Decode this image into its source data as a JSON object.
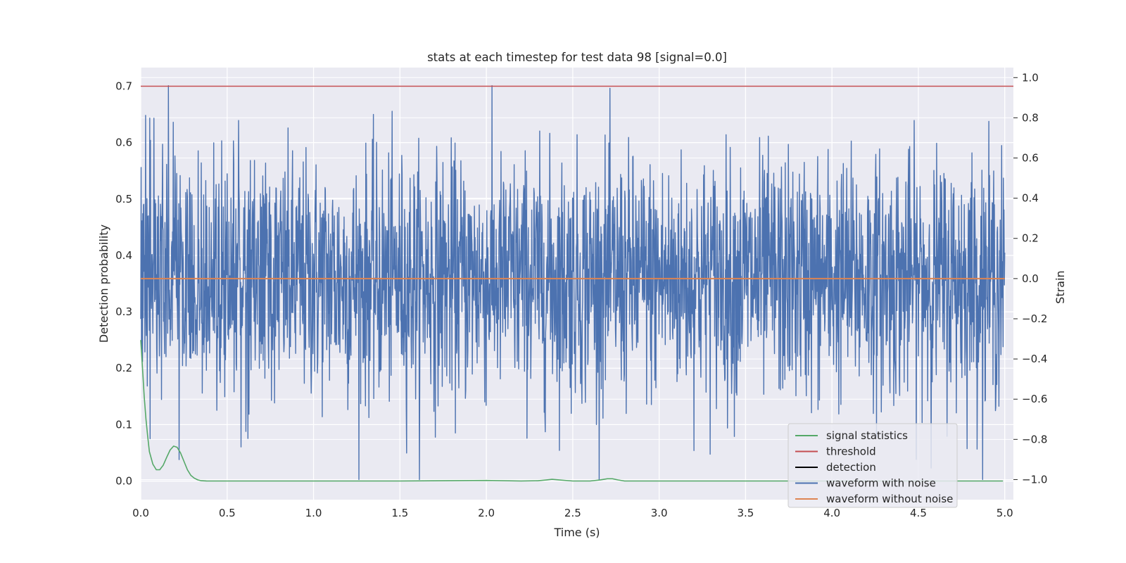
{
  "chart_data": {
    "type": "line",
    "title": "stats at each timestep for test data 98 [signal=0.0]",
    "xlabel": "Time (s)",
    "ylabel_left": "Detection probability",
    "ylabel_right": "Strain",
    "xlim": [
      0.0,
      5.05
    ],
    "ylim_left": [
      -0.033,
      0.733
    ],
    "ylim_right": [
      -1.1,
      1.05
    ],
    "x_ticks": [
      "0.0",
      "0.5",
      "1.0",
      "1.5",
      "2.0",
      "2.5",
      "3.0",
      "3.5",
      "4.0",
      "4.5",
      "5.0"
    ],
    "y_ticks_left": [
      "0.0",
      "0.1",
      "0.2",
      "0.3",
      "0.4",
      "0.5",
      "0.6",
      "0.7"
    ],
    "y_ticks_right": [
      "−1.0",
      "−0.8",
      "−0.6",
      "−0.4",
      "−0.2",
      "0.0",
      "0.2",
      "0.4",
      "0.6",
      "0.8",
      "1.0"
    ],
    "grid": true,
    "legend_position": "lower-right",
    "threshold": 0.7,
    "series": [
      {
        "name": "signal statistics",
        "axis": "left",
        "color": "#55a868",
        "x": [
          0.0,
          0.01,
          0.02,
          0.03,
          0.04,
          0.05,
          0.07,
          0.09,
          0.11,
          0.13,
          0.15,
          0.17,
          0.19,
          0.21,
          0.23,
          0.25,
          0.27,
          0.29,
          0.31,
          0.33,
          0.35,
          0.38,
          0.42,
          0.5,
          1.0,
          1.5,
          2.0,
          2.2,
          2.3,
          2.35,
          2.38,
          2.42,
          2.5,
          2.6,
          2.66,
          2.7,
          2.73,
          2.76,
          2.8,
          2.9,
          3.5,
          4.0,
          4.5,
          4.99
        ],
        "y": [
          0.25,
          0.2,
          0.15,
          0.11,
          0.08,
          0.052,
          0.03,
          0.02,
          0.02,
          0.028,
          0.042,
          0.055,
          0.062,
          0.06,
          0.05,
          0.035,
          0.02,
          0.01,
          0.005,
          0.002,
          0.0006,
          0.0002,
          0.0,
          0.0,
          0.0,
          0.0,
          0.001,
          0.0,
          0.0005,
          0.002,
          0.003,
          0.002,
          0.0,
          0.0,
          0.002,
          0.004,
          0.004,
          0.002,
          0.0,
          0.0,
          0.0,
          0.0,
          0.0,
          0.0
        ]
      },
      {
        "name": "threshold",
        "axis": "left",
        "color": "#c44e52",
        "x": [
          0.0,
          5.05
        ],
        "y": [
          0.7,
          0.7
        ]
      },
      {
        "name": "detection",
        "axis": "left",
        "color": "#000000",
        "x": [],
        "y": []
      },
      {
        "name": "waveform with noise",
        "axis": "right",
        "color": "#4c72b0",
        "x_range": [
          0.0,
          5.0
        ],
        "approx_range": [
          -1.0,
          0.96
        ],
        "note_values": "dense noise, typical amplitude about 0.3"
      },
      {
        "name": "waveform without noise",
        "axis": "right",
        "color": "#dd8452",
        "x": [
          0.0,
          5.0
        ],
        "y": [
          0.0,
          0.0
        ]
      }
    ]
  }
}
